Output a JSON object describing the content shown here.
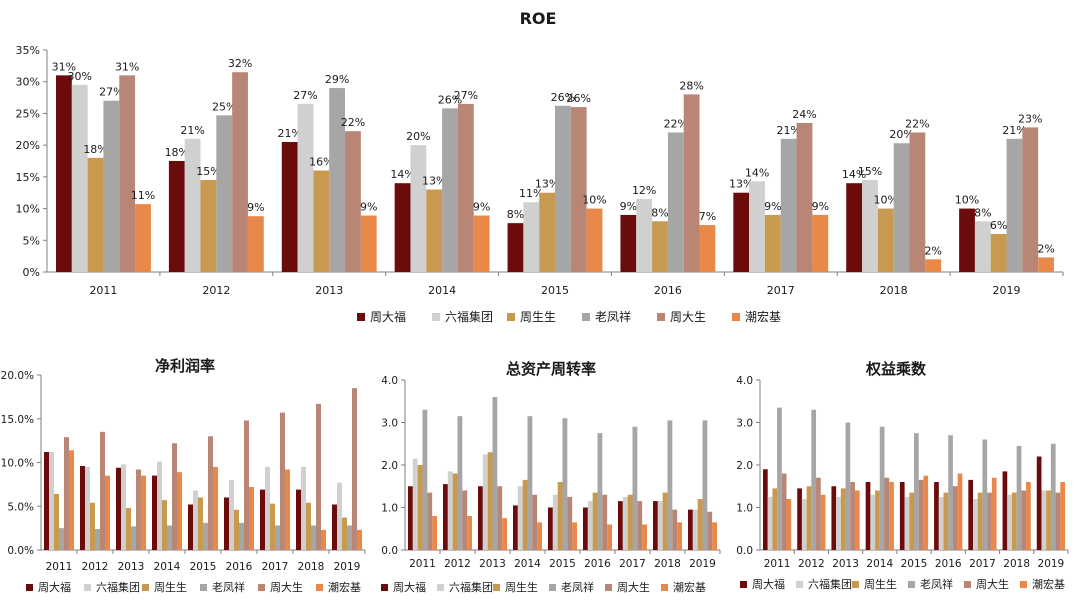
{
  "colors": {
    "周大福": "#6b0b0b",
    "六福集团": "#d0d0d0",
    "周生生": "#c89a50",
    "老凤祥": "#a6a6a6",
    "周大生": "#b98676",
    "潮宏基": "#e8894a"
  },
  "chart_data": [
    {
      "type": "bar",
      "title": "ROE",
      "categories": [
        "2011",
        "2012",
        "2013",
        "2014",
        "2015",
        "2016",
        "2017",
        "2018",
        "2019"
      ],
      "ylim": [
        0,
        0.35
      ],
      "yticks": [
        "0%",
        "5%",
        "10%",
        "15%",
        "20%",
        "25%",
        "30%",
        "35%"
      ],
      "grid": false,
      "legend": "bottom",
      "series": [
        {
          "name": "周大福",
          "values": [
            0.31,
            0.175,
            0.205,
            0.14,
            0.077,
            0.09,
            0.125,
            0.14,
            0.1
          ],
          "labels": [
            "31%",
            "18%",
            "21%",
            "14%",
            "8%",
            "9%",
            "13%",
            "14%",
            "10%"
          ]
        },
        {
          "name": "六福集团",
          "values": [
            0.295,
            0.21,
            0.265,
            0.2,
            0.11,
            0.115,
            0.143,
            0.145,
            0.08
          ],
          "labels": [
            "30%",
            "21%",
            "27%",
            "20%",
            "11%",
            "12%",
            "14%",
            "15%",
            "8%"
          ]
        },
        {
          "name": "周生生",
          "values": [
            0.18,
            0.145,
            0.16,
            0.13,
            0.125,
            0.08,
            0.09,
            0.1,
            0.06
          ],
          "labels": [
            "18%",
            "15%",
            "16%",
            "13%",
            "13%",
            "8%",
            "9%",
            "10%",
            "6%"
          ]
        },
        {
          "name": "老凤祥",
          "values": [
            0.27,
            0.247,
            0.29,
            0.258,
            0.262,
            0.22,
            0.21,
            0.203,
            0.21
          ],
          "labels": [
            "27%",
            "25%",
            "29%",
            "26%",
            "26%",
            "22%",
            "21%",
            "20%",
            "21%"
          ]
        },
        {
          "name": "周大生",
          "values": [
            0.31,
            0.315,
            0.222,
            0.265,
            0.26,
            0.28,
            0.235,
            0.22,
            0.228
          ],
          "labels": [
            "31%",
            "32%",
            "22%",
            "27%",
            "26%",
            "28%",
            "24%",
            "22%",
            "23%"
          ]
        },
        {
          "name": "潮宏基",
          "values": [
            0.107,
            0.088,
            0.089,
            0.089,
            0.1,
            0.074,
            0.09,
            0.02,
            0.023
          ],
          "labels": [
            "11%",
            "9%",
            "9%",
            "9%",
            "10%",
            "7%",
            "9%",
            "2%",
            "2%"
          ]
        }
      ]
    },
    {
      "type": "bar",
      "title": "净利润率",
      "categories": [
        "2011",
        "2012",
        "2013",
        "2014",
        "2015",
        "2016",
        "2017",
        "2018",
        "2019"
      ],
      "ylim": [
        0,
        0.2
      ],
      "yticks": [
        "0.0%",
        "5.0%",
        "10.0%",
        "15.0%",
        "20.0%"
      ],
      "grid": false,
      "legend": "bottom",
      "series": [
        {
          "name": "周大福",
          "values": [
            0.112,
            0.096,
            0.094,
            0.085,
            0.052,
            0.06,
            0.069,
            0.069,
            0.052
          ]
        },
        {
          "name": "六福集团",
          "values": [
            0.112,
            0.095,
            0.098,
            0.101,
            0.068,
            0.08,
            0.095,
            0.095,
            0.077
          ]
        },
        {
          "name": "周生生",
          "values": [
            0.064,
            0.054,
            0.048,
            0.057,
            0.06,
            0.046,
            0.053,
            0.054,
            0.037
          ]
        },
        {
          "name": "老凤祥",
          "values": [
            0.025,
            0.024,
            0.027,
            0.028,
            0.031,
            0.031,
            0.028,
            0.028,
            0.028
          ]
        },
        {
          "name": "周大生",
          "values": [
            0.129,
            0.135,
            0.092,
            0.122,
            0.13,
            0.148,
            0.157,
            0.167,
            0.185
          ]
        },
        {
          "name": "潮宏基",
          "values": [
            0.114,
            0.085,
            0.085,
            0.089,
            0.095,
            0.072,
            0.092,
            0.023,
            0.023
          ]
        }
      ]
    },
    {
      "type": "bar",
      "title": "总资产周转率",
      "categories": [
        "2011",
        "2012",
        "2013",
        "2014",
        "2015",
        "2016",
        "2017",
        "2018",
        "2019"
      ],
      "ylim": [
        0,
        4
      ],
      "yticks": [
        "0.0",
        "1.0",
        "2.0",
        "3.0",
        "4.0"
      ],
      "grid": false,
      "legend": "bottom",
      "series": [
        {
          "name": "周大福",
          "values": [
            1.5,
            1.55,
            1.5,
            1.05,
            1.0,
            1.0,
            1.15,
            1.15,
            0.95
          ]
        },
        {
          "name": "六福集团",
          "values": [
            2.15,
            1.85,
            2.25,
            1.5,
            1.3,
            1.15,
            1.25,
            1.15,
            0.95
          ]
        },
        {
          "name": "周生生",
          "values": [
            2.0,
            1.8,
            2.3,
            1.65,
            1.6,
            1.35,
            1.3,
            1.35,
            1.2
          ]
        },
        {
          "name": "老凤祥",
          "values": [
            3.3,
            3.15,
            3.6,
            3.15,
            3.1,
            2.75,
            2.9,
            3.05,
            3.05
          ]
        },
        {
          "name": "周大生",
          "values": [
            1.35,
            1.4,
            1.5,
            1.3,
            1.25,
            1.3,
            1.15,
            0.95,
            0.9
          ]
        },
        {
          "name": "潮宏基",
          "values": [
            0.8,
            0.8,
            0.75,
            0.65,
            0.65,
            0.6,
            0.6,
            0.65,
            0.65
          ]
        }
      ]
    },
    {
      "type": "bar",
      "title": "权益乘数",
      "categories": [
        "2011",
        "2012",
        "2013",
        "2014",
        "2015",
        "2016",
        "2017",
        "2018",
        "2019"
      ],
      "ylim": [
        0,
        4
      ],
      "yticks": [
        "0.0",
        "1.0",
        "2.0",
        "3.0",
        "4.0"
      ],
      "grid": false,
      "legend": "bottom",
      "series": [
        {
          "name": "周大福",
          "values": [
            1.9,
            1.45,
            1.5,
            1.6,
            1.6,
            1.6,
            1.65,
            1.85,
            2.2
          ]
        },
        {
          "name": "六福集团",
          "values": [
            1.25,
            1.2,
            1.25,
            1.3,
            1.25,
            1.25,
            1.2,
            1.3,
            1.4
          ]
        },
        {
          "name": "周生生",
          "values": [
            1.45,
            1.5,
            1.45,
            1.4,
            1.35,
            1.35,
            1.35,
            1.35,
            1.4
          ]
        },
        {
          "name": "老凤祥",
          "values": [
            3.35,
            3.3,
            3.0,
            2.9,
            2.75,
            2.7,
            2.6,
            2.45,
            2.5
          ]
        },
        {
          "name": "周大生",
          "values": [
            1.8,
            1.7,
            1.6,
            1.7,
            1.65,
            1.5,
            1.35,
            1.4,
            1.35
          ]
        },
        {
          "name": "潮宏基",
          "values": [
            1.2,
            1.3,
            1.4,
            1.6,
            1.75,
            1.8,
            1.7,
            1.6,
            1.6
          ]
        }
      ]
    }
  ]
}
